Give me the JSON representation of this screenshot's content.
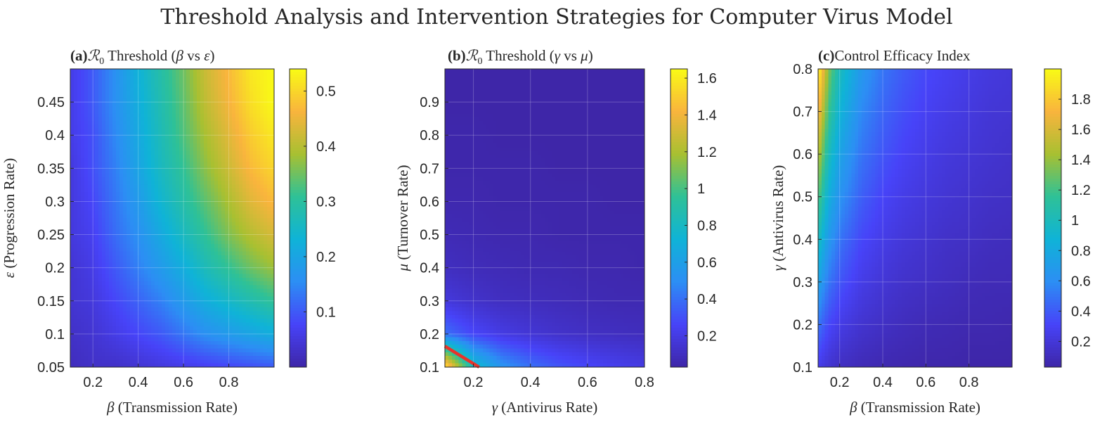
{
  "figure": {
    "title": "Threshold Analysis and Intervention Strategies for Computer Virus Model"
  },
  "colormap": [
    "#3e26a8",
    "#4743f8",
    "#2c8ef4",
    "#0fb3d7",
    "#2ec197",
    "#a8c031",
    "#f9b43d",
    "#f9fb15"
  ],
  "chart_data": [
    {
      "type": "heatmap",
      "panel_label": "(a)",
      "title_parts": [
        "ℛ",
        "0",
        " Threshold (",
        "β",
        " vs ",
        "ε",
        ")"
      ],
      "xlabel_symbol": "β",
      "xlabel_text": " (Transmission Rate)",
      "ylabel_symbol": "ε",
      "ylabel_text": " (Progression Rate)",
      "xlim": [
        0.1,
        1.0
      ],
      "ylim": [
        0.05,
        0.5
      ],
      "xticks": [
        0.2,
        0.4,
        0.6,
        0.8
      ],
      "xtick_labels": [
        "0.2",
        "0.4",
        "0.6",
        "0.8"
      ],
      "yticks": [
        0.05,
        0.1,
        0.15,
        0.2,
        0.25,
        0.3,
        0.35,
        0.4,
        0.45
      ],
      "ytick_labels": [
        "0.05",
        "0.1",
        "0.15",
        "0.2",
        "0.25",
        "0.3",
        "0.35",
        "0.4",
        "0.45"
      ],
      "grid": true,
      "colorbar": {
        "clim": [
          0.0,
          0.54
        ],
        "ticks": [
          0.1,
          0.2,
          0.3,
          0.4,
          0.5
        ],
        "tick_labels": [
          "0.1",
          "0.2",
          "0.3",
          "0.4",
          "0.5"
        ]
      },
      "x_samples": [
        0.1,
        0.2,
        0.3,
        0.4,
        0.5,
        0.6,
        0.7,
        0.8,
        0.9,
        1.0
      ],
      "y_samples": [
        0.05,
        0.1,
        0.15,
        0.2,
        0.25,
        0.3,
        0.35,
        0.4,
        0.45,
        0.5
      ],
      "z": [
        [
          0.02,
          0.03,
          0.03,
          0.04,
          0.05,
          0.06,
          0.07,
          0.08,
          0.09,
          0.1
        ],
        [
          0.03,
          0.04,
          0.06,
          0.08,
          0.1,
          0.13,
          0.16,
          0.18,
          0.2,
          0.22
        ],
        [
          0.04,
          0.05,
          0.08,
          0.11,
          0.14,
          0.18,
          0.22,
          0.25,
          0.28,
          0.31
        ],
        [
          0.04,
          0.06,
          0.1,
          0.14,
          0.18,
          0.22,
          0.27,
          0.31,
          0.35,
          0.38
        ],
        [
          0.05,
          0.07,
          0.12,
          0.16,
          0.21,
          0.26,
          0.31,
          0.36,
          0.4,
          0.43
        ],
        [
          0.05,
          0.08,
          0.13,
          0.18,
          0.24,
          0.29,
          0.34,
          0.39,
          0.44,
          0.47
        ],
        [
          0.05,
          0.09,
          0.14,
          0.2,
          0.26,
          0.31,
          0.37,
          0.42,
          0.47,
          0.5
        ],
        [
          0.06,
          0.09,
          0.15,
          0.21,
          0.27,
          0.33,
          0.39,
          0.44,
          0.49,
          0.52
        ],
        [
          0.06,
          0.1,
          0.16,
          0.22,
          0.28,
          0.34,
          0.41,
          0.46,
          0.51,
          0.54
        ],
        [
          0.06,
          0.1,
          0.16,
          0.23,
          0.29,
          0.35,
          0.42,
          0.47,
          0.52,
          0.54
        ]
      ]
    },
    {
      "type": "heatmap",
      "panel_label": "(b)",
      "title_parts": [
        "ℛ",
        "0",
        " Threshold (",
        "γ",
        " vs ",
        "μ",
        ")"
      ],
      "xlabel_symbol": "γ",
      "xlabel_text": " (Antivirus Rate)",
      "ylabel_symbol": "μ",
      "ylabel_text": " (Turnover Rate)",
      "xlim": [
        0.1,
        0.8
      ],
      "ylim": [
        0.1,
        1.0
      ],
      "xticks": [
        0.2,
        0.4,
        0.6,
        0.8
      ],
      "xtick_labels": [
        "0.2",
        "0.4",
        "0.6",
        "0.8"
      ],
      "yticks": [
        0.1,
        0.2,
        0.3,
        0.4,
        0.5,
        0.6,
        0.7,
        0.8,
        0.9
      ],
      "ytick_labels": [
        "0.1",
        "0.2",
        "0.3",
        "0.4",
        "0.5",
        "0.6",
        "0.7",
        "0.8",
        "0.9"
      ],
      "grid": true,
      "colorbar": {
        "clim": [
          0.03,
          1.65
        ],
        "ticks": [
          0.2,
          0.4,
          0.6,
          0.8,
          1.0,
          1.2,
          1.4,
          1.6
        ],
        "tick_labels": [
          "0.2",
          "0.4",
          "0.6",
          "0.8",
          "1",
          "1.2",
          "1.4",
          "1.6"
        ]
      },
      "x_samples": [
        0.1,
        0.2,
        0.3,
        0.4,
        0.5,
        0.6,
        0.7,
        0.8
      ],
      "y_samples": [
        0.1,
        0.2,
        0.3,
        0.4,
        0.5,
        0.6,
        0.7,
        0.8,
        0.9,
        1.0
      ],
      "z": [
        [
          1.6,
          0.8,
          0.53,
          0.4,
          0.32,
          0.27,
          0.23,
          0.2
        ],
        [
          0.4,
          0.27,
          0.2,
          0.16,
          0.13,
          0.11,
          0.1,
          0.09
        ],
        [
          0.18,
          0.13,
          0.1,
          0.09,
          0.08,
          0.07,
          0.06,
          0.06
        ],
        [
          0.1,
          0.08,
          0.07,
          0.06,
          0.06,
          0.05,
          0.05,
          0.04
        ],
        [
          0.07,
          0.06,
          0.05,
          0.05,
          0.04,
          0.04,
          0.04,
          0.04
        ],
        [
          0.05,
          0.05,
          0.04,
          0.04,
          0.04,
          0.04,
          0.03,
          0.03
        ],
        [
          0.04,
          0.04,
          0.04,
          0.04,
          0.03,
          0.03,
          0.03,
          0.03
        ],
        [
          0.04,
          0.04,
          0.03,
          0.03,
          0.03,
          0.03,
          0.03,
          0.03
        ],
        [
          0.03,
          0.03,
          0.03,
          0.03,
          0.03,
          0.03,
          0.03,
          0.03
        ],
        [
          0.03,
          0.03,
          0.03,
          0.03,
          0.03,
          0.03,
          0.03,
          0.03
        ]
      ],
      "threshold_line": {
        "color": "#e8332b",
        "x": [
          0.1,
          0.22
        ],
        "y": [
          0.163,
          0.1
        ]
      }
    },
    {
      "type": "heatmap",
      "panel_label": "(c)",
      "title_parts": [
        "Control Efficacy Index"
      ],
      "xlabel_symbol": "β",
      "xlabel_text": " (Transmission Rate)",
      "ylabel_symbol": "γ",
      "ylabel_text": " (Antivirus Rate)",
      "xlim": [
        0.1,
        1.0
      ],
      "ylim": [
        0.1,
        0.8
      ],
      "xticks": [
        0.2,
        0.4,
        0.6,
        0.8
      ],
      "xtick_labels": [
        "0.2",
        "0.4",
        "0.6",
        "0.8"
      ],
      "yticks": [
        0.1,
        0.2,
        0.3,
        0.4,
        0.5,
        0.6,
        0.7,
        0.8
      ],
      "ytick_labels": [
        "0.1",
        "0.2",
        "0.3",
        "0.4",
        "0.5",
        "0.6",
        "0.7",
        "0.8"
      ],
      "grid": true,
      "colorbar": {
        "clim": [
          0.03,
          2.0
        ],
        "ticks": [
          0.2,
          0.4,
          0.6,
          0.8,
          1.0,
          1.2,
          1.4,
          1.6,
          1.8
        ],
        "tick_labels": [
          "0.2",
          "0.4",
          "0.6",
          "0.8",
          "1",
          "1.2",
          "1.4",
          "1.6",
          "1.8"
        ]
      },
      "x_samples": [
        0.1,
        0.15,
        0.2,
        0.3,
        0.4,
        0.5,
        0.6,
        0.7,
        0.8,
        0.9,
        1.0
      ],
      "y_samples": [
        0.1,
        0.2,
        0.3,
        0.4,
        0.5,
        0.6,
        0.7,
        0.8
      ],
      "z": [
        [
          0.25,
          0.17,
          0.12,
          0.08,
          0.06,
          0.05,
          0.04,
          0.04,
          0.03,
          0.03,
          0.03
        ],
        [
          0.5,
          0.33,
          0.25,
          0.17,
          0.13,
          0.1,
          0.08,
          0.07,
          0.06,
          0.06,
          0.05
        ],
        [
          0.75,
          0.5,
          0.38,
          0.25,
          0.19,
          0.15,
          0.13,
          0.11,
          0.09,
          0.08,
          0.08
        ],
        [
          1.0,
          0.67,
          0.5,
          0.33,
          0.25,
          0.2,
          0.17,
          0.14,
          0.13,
          0.11,
          0.1
        ],
        [
          1.25,
          0.83,
          0.63,
          0.42,
          0.31,
          0.25,
          0.21,
          0.18,
          0.16,
          0.14,
          0.13
        ],
        [
          1.5,
          1.0,
          0.75,
          0.5,
          0.38,
          0.3,
          0.25,
          0.21,
          0.19,
          0.17,
          0.15
        ],
        [
          1.75,
          1.17,
          0.88,
          0.58,
          0.44,
          0.35,
          0.29,
          0.25,
          0.22,
          0.19,
          0.18
        ],
        [
          2.0,
          1.33,
          1.0,
          0.67,
          0.5,
          0.4,
          0.33,
          0.29,
          0.25,
          0.22,
          0.2
        ]
      ]
    }
  ]
}
